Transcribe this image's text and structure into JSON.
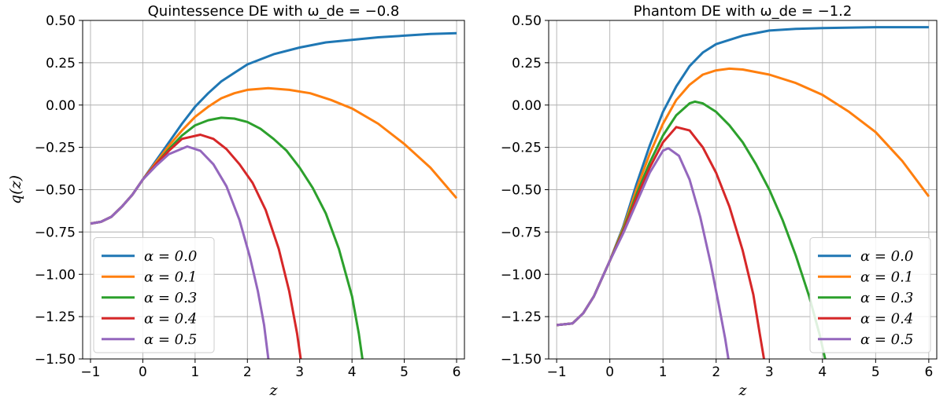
{
  "colors": {
    "alpha_0.0": "#1f77b4",
    "alpha_0.1": "#ff7f0e",
    "alpha_0.3": "#2ca02c",
    "alpha_0.4": "#d62728",
    "alpha_0.5": "#9467bd"
  },
  "chart_data": [
    {
      "type": "line",
      "title": "Quintessence DE with ω_de = −0.8",
      "xlabel": "z",
      "ylabel": "q(z)",
      "xlim": [
        -1.15,
        6.15
      ],
      "ylim": [
        -1.5,
        0.5
      ],
      "xticks": [
        "−1",
        "0",
        "1",
        "2",
        "3",
        "4",
        "5",
        "6"
      ],
      "xtick_values": [
        -1,
        0,
        1,
        2,
        3,
        4,
        5,
        6
      ],
      "yticks": [
        "0.50",
        "0.25",
        "0.00",
        "−0.25",
        "−0.50",
        "−0.75",
        "−1.00",
        "−1.25",
        "−1.50"
      ],
      "ytick_values": [
        0.5,
        0.25,
        0.0,
        -0.25,
        -0.5,
        -0.75,
        -1.0,
        -1.25,
        -1.5
      ],
      "grid": true,
      "legend_position": "lower-left",
      "series": [
        {
          "name": "α = 0.0",
          "color": "#1f77b4",
          "points": [
            [
              -1,
              -0.7
            ],
            [
              -0.8,
              -0.69
            ],
            [
              -0.6,
              -0.66
            ],
            [
              -0.4,
              -0.6
            ],
            [
              -0.2,
              -0.53
            ],
            [
              0,
              -0.44
            ],
            [
              0.25,
              -0.33
            ],
            [
              0.5,
              -0.22
            ],
            [
              0.75,
              -0.11
            ],
            [
              1,
              -0.01
            ],
            [
              1.25,
              0.07
            ],
            [
              1.5,
              0.14
            ],
            [
              1.75,
              0.19
            ],
            [
              2,
              0.24
            ],
            [
              2.5,
              0.3
            ],
            [
              3,
              0.34
            ],
            [
              3.5,
              0.37
            ],
            [
              4,
              0.385
            ],
            [
              4.5,
              0.4
            ],
            [
              5,
              0.41
            ],
            [
              5.5,
              0.42
            ],
            [
              6,
              0.425
            ]
          ]
        },
        {
          "name": "α = 0.1",
          "color": "#ff7f0e",
          "points": [
            [
              -1,
              -0.7
            ],
            [
              -0.8,
              -0.69
            ],
            [
              -0.6,
              -0.66
            ],
            [
              -0.4,
              -0.6
            ],
            [
              -0.2,
              -0.53
            ],
            [
              0,
              -0.44
            ],
            [
              0.25,
              -0.34
            ],
            [
              0.5,
              -0.24
            ],
            [
              0.75,
              -0.15
            ],
            [
              1,
              -0.07
            ],
            [
              1.25,
              -0.01
            ],
            [
              1.5,
              0.04
            ],
            [
              1.75,
              0.07
            ],
            [
              2,
              0.09
            ],
            [
              2.4,
              0.1
            ],
            [
              2.8,
              0.09
            ],
            [
              3.2,
              0.07
            ],
            [
              3.6,
              0.03
            ],
            [
              4,
              -0.02
            ],
            [
              4.5,
              -0.11
            ],
            [
              5,
              -0.23
            ],
            [
              5.5,
              -0.37
            ],
            [
              6,
              -0.55
            ]
          ]
        },
        {
          "name": "α = 0.3",
          "color": "#2ca02c",
          "points": [
            [
              -1,
              -0.7
            ],
            [
              -0.8,
              -0.69
            ],
            [
              -0.6,
              -0.66
            ],
            [
              -0.4,
              -0.6
            ],
            [
              -0.2,
              -0.53
            ],
            [
              0,
              -0.44
            ],
            [
              0.25,
              -0.35
            ],
            [
              0.5,
              -0.26
            ],
            [
              0.75,
              -0.18
            ],
            [
              1,
              -0.12
            ],
            [
              1.25,
              -0.09
            ],
            [
              1.5,
              -0.075
            ],
            [
              1.75,
              -0.08
            ],
            [
              2,
              -0.1
            ],
            [
              2.25,
              -0.14
            ],
            [
              2.5,
              -0.2
            ],
            [
              2.75,
              -0.27
            ],
            [
              3,
              -0.37
            ],
            [
              3.25,
              -0.49
            ],
            [
              3.5,
              -0.64
            ],
            [
              3.75,
              -0.85
            ],
            [
              4,
              -1.13
            ],
            [
              4.13,
              -1.35
            ],
            [
              4.2,
              -1.5
            ]
          ]
        },
        {
          "name": "α = 0.4",
          "color": "#d62728",
          "points": [
            [
              -1,
              -0.7
            ],
            [
              -0.8,
              -0.69
            ],
            [
              -0.6,
              -0.66
            ],
            [
              -0.4,
              -0.6
            ],
            [
              -0.2,
              -0.53
            ],
            [
              0,
              -0.44
            ],
            [
              0.25,
              -0.35
            ],
            [
              0.5,
              -0.27
            ],
            [
              0.75,
              -0.2
            ],
            [
              1.1,
              -0.175
            ],
            [
              1.35,
              -0.2
            ],
            [
              1.6,
              -0.26
            ],
            [
              1.85,
              -0.35
            ],
            [
              2.1,
              -0.46
            ],
            [
              2.35,
              -0.62
            ],
            [
              2.6,
              -0.85
            ],
            [
              2.8,
              -1.1
            ],
            [
              2.95,
              -1.35
            ],
            [
              3.02,
              -1.5
            ]
          ]
        },
        {
          "name": "α = 0.5",
          "color": "#9467bd",
          "points": [
            [
              -1,
              -0.7
            ],
            [
              -0.8,
              -0.69
            ],
            [
              -0.6,
              -0.66
            ],
            [
              -0.4,
              -0.6
            ],
            [
              -0.2,
              -0.53
            ],
            [
              0,
              -0.44
            ],
            [
              0.25,
              -0.36
            ],
            [
              0.5,
              -0.29
            ],
            [
              0.85,
              -0.245
            ],
            [
              1.1,
              -0.27
            ],
            [
              1.35,
              -0.35
            ],
            [
              1.6,
              -0.48
            ],
            [
              1.85,
              -0.68
            ],
            [
              2.05,
              -0.9
            ],
            [
              2.2,
              -1.1
            ],
            [
              2.32,
              -1.3
            ],
            [
              2.4,
              -1.5
            ]
          ]
        }
      ]
    },
    {
      "type": "line",
      "title": "Phantom DE with ω_de = −1.2",
      "xlabel": "z",
      "ylabel": "",
      "xlim": [
        -1.15,
        6.15
      ],
      "ylim": [
        -1.5,
        0.5
      ],
      "xticks": [
        "−1",
        "0",
        "1",
        "2",
        "3",
        "4",
        "5",
        "6"
      ],
      "xtick_values": [
        -1,
        0,
        1,
        2,
        3,
        4,
        5,
        6
      ],
      "yticks": [
        "0.50",
        "0.25",
        "0.00",
        "−0.25",
        "−0.50",
        "−0.75",
        "−1.00",
        "−1.25",
        "−1.50"
      ],
      "ytick_values": [
        0.5,
        0.25,
        0.0,
        -0.25,
        -0.5,
        -0.75,
        -1.0,
        -1.25,
        -1.5
      ],
      "grid": true,
      "legend_position": "lower-right",
      "series": [
        {
          "name": "α = 0.0",
          "color": "#1f77b4",
          "points": [
            [
              -1,
              -1.3
            ],
            [
              -0.7,
              -1.29
            ],
            [
              -0.5,
              -1.23
            ],
            [
              -0.3,
              -1.13
            ],
            [
              -0.1,
              -0.99
            ],
            [
              0,
              -0.92
            ],
            [
              0.25,
              -0.72
            ],
            [
              0.5,
              -0.47
            ],
            [
              0.75,
              -0.24
            ],
            [
              1,
              -0.04
            ],
            [
              1.25,
              0.11
            ],
            [
              1.5,
              0.23
            ],
            [
              1.75,
              0.31
            ],
            [
              2,
              0.36
            ],
            [
              2.5,
              0.41
            ],
            [
              3,
              0.44
            ],
            [
              3.5,
              0.45
            ],
            [
              4,
              0.455
            ],
            [
              5,
              0.46
            ],
            [
              6,
              0.46
            ]
          ]
        },
        {
          "name": "α = 0.1",
          "color": "#ff7f0e",
          "points": [
            [
              -1,
              -1.3
            ],
            [
              -0.7,
              -1.29
            ],
            [
              -0.5,
              -1.23
            ],
            [
              -0.3,
              -1.13
            ],
            [
              -0.1,
              -0.99
            ],
            [
              0,
              -0.92
            ],
            [
              0.25,
              -0.73
            ],
            [
              0.5,
              -0.5
            ],
            [
              0.75,
              -0.29
            ],
            [
              1,
              -0.11
            ],
            [
              1.25,
              0.03
            ],
            [
              1.5,
              0.12
            ],
            [
              1.75,
              0.18
            ],
            [
              2,
              0.205
            ],
            [
              2.25,
              0.215
            ],
            [
              2.5,
              0.21
            ],
            [
              3,
              0.18
            ],
            [
              3.5,
              0.13
            ],
            [
              4,
              0.06
            ],
            [
              4.5,
              -0.04
            ],
            [
              5,
              -0.16
            ],
            [
              5.5,
              -0.33
            ],
            [
              6,
              -0.54
            ]
          ]
        },
        {
          "name": "α = 0.3",
          "color": "#2ca02c",
          "points": [
            [
              -1,
              -1.3
            ],
            [
              -0.7,
              -1.29
            ],
            [
              -0.5,
              -1.23
            ],
            [
              -0.3,
              -1.13
            ],
            [
              -0.1,
              -0.99
            ],
            [
              0,
              -0.92
            ],
            [
              0.25,
              -0.74
            ],
            [
              0.5,
              -0.53
            ],
            [
              0.75,
              -0.34
            ],
            [
              1,
              -0.18
            ],
            [
              1.25,
              -0.06
            ],
            [
              1.5,
              0.01
            ],
            [
              1.6,
              0.02
            ],
            [
              1.75,
              0.01
            ],
            [
              2,
              -0.04
            ],
            [
              2.25,
              -0.12
            ],
            [
              2.5,
              -0.22
            ],
            [
              2.75,
              -0.35
            ],
            [
              3,
              -0.5
            ],
            [
              3.25,
              -0.68
            ],
            [
              3.5,
              -0.89
            ],
            [
              3.75,
              -1.13
            ],
            [
              3.95,
              -1.36
            ],
            [
              4.05,
              -1.5
            ]
          ]
        },
        {
          "name": "α = 0.4",
          "color": "#d62728",
          "points": [
            [
              -1,
              -1.3
            ],
            [
              -0.7,
              -1.29
            ],
            [
              -0.5,
              -1.23
            ],
            [
              -0.3,
              -1.13
            ],
            [
              -0.1,
              -0.99
            ],
            [
              0,
              -0.92
            ],
            [
              0.25,
              -0.75
            ],
            [
              0.5,
              -0.55
            ],
            [
              0.75,
              -0.37
            ],
            [
              1,
              -0.22
            ],
            [
              1.25,
              -0.13
            ],
            [
              1.5,
              -0.15
            ],
            [
              1.75,
              -0.25
            ],
            [
              2,
              -0.4
            ],
            [
              2.25,
              -0.6
            ],
            [
              2.5,
              -0.86
            ],
            [
              2.7,
              -1.12
            ],
            [
              2.82,
              -1.35
            ],
            [
              2.9,
              -1.5
            ]
          ]
        },
        {
          "name": "α = 0.5",
          "color": "#9467bd",
          "points": [
            [
              -1,
              -1.3
            ],
            [
              -0.7,
              -1.29
            ],
            [
              -0.5,
              -1.23
            ],
            [
              -0.3,
              -1.13
            ],
            [
              -0.1,
              -0.99
            ],
            [
              0,
              -0.92
            ],
            [
              0.25,
              -0.76
            ],
            [
              0.5,
              -0.58
            ],
            [
              0.75,
              -0.4
            ],
            [
              1,
              -0.27
            ],
            [
              1.1,
              -0.255
            ],
            [
              1.3,
              -0.3
            ],
            [
              1.5,
              -0.44
            ],
            [
              1.7,
              -0.66
            ],
            [
              1.9,
              -0.94
            ],
            [
              2.05,
              -1.18
            ],
            [
              2.17,
              -1.38
            ],
            [
              2.23,
              -1.5
            ]
          ]
        }
      ]
    }
  ]
}
